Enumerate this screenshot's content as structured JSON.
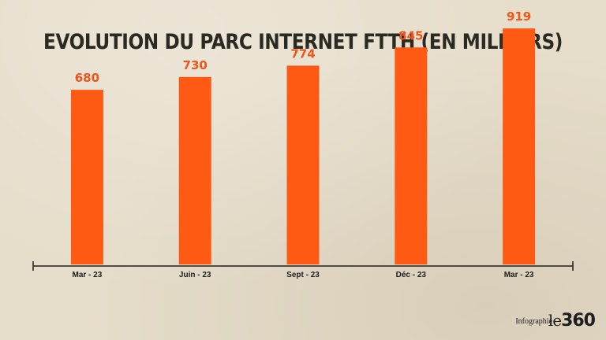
{
  "chart_data": {
    "type": "bar",
    "title": "EVOLUTION DU PARC INTERNET FTTH (EN MILLIERS)",
    "categories": [
      "Mar - 23",
      "Juin - 23",
      "Sept - 23",
      "Déc - 23",
      "Mar - 23"
    ],
    "values": [
      680,
      730,
      774,
      845,
      919
    ],
    "ylim": [
      0,
      950
    ],
    "grid": false,
    "colors": {
      "bar": "#ff5a14",
      "label": "#f0561a",
      "axis": "#1e1e1e"
    }
  },
  "footer": {
    "credit": "Infographie",
    "logo_le": "le",
    "logo_num": "360"
  }
}
